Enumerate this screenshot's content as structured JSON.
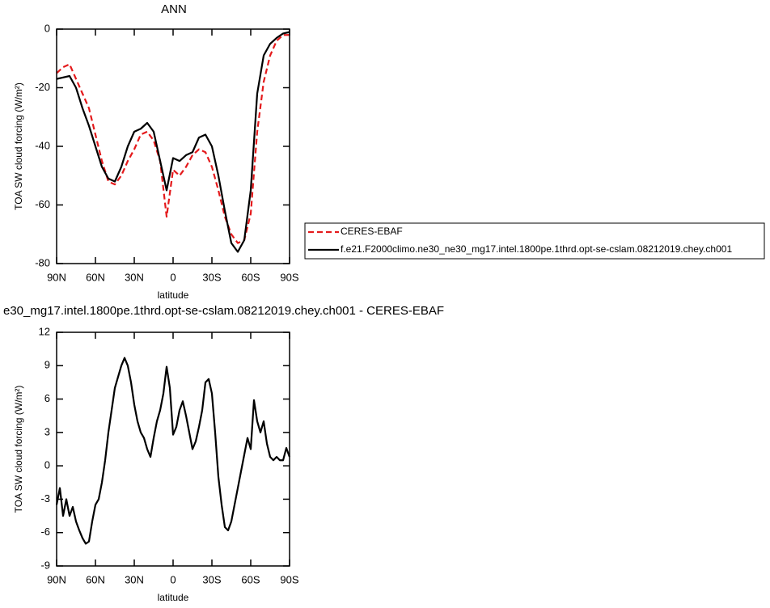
{
  "chart_data": [
    {
      "type": "line",
      "title": "ANN",
      "xlabel": "latitude",
      "ylabel": "TOA SW cloud forcing (W/m²)",
      "x": [
        90,
        85,
        80,
        75,
        70,
        65,
        60,
        55,
        50,
        45,
        40,
        35,
        30,
        25,
        20,
        15,
        10,
        5,
        0,
        -5,
        -10,
        -15,
        -20,
        -25,
        -30,
        -35,
        -40,
        -45,
        -50,
        -55,
        -60,
        -65,
        -70,
        -75,
        -80,
        -85,
        -90
      ],
      "series": [
        {
          "name": "CERES-EBAF",
          "color": "#e41a1c",
          "dash": true,
          "values": [
            -15,
            -13,
            -12,
            -17,
            -22,
            -27,
            -36,
            -45,
            -52,
            -53,
            -50,
            -45,
            -41,
            -36,
            -35,
            -38,
            -45,
            -64,
            -48,
            -50,
            -47,
            -43,
            -41,
            -42,
            -47,
            -55,
            -64,
            -70,
            -73,
            -72,
            -63,
            -35,
            -18,
            -9,
            -4,
            -2,
            -2
          ]
        },
        {
          "name": "f.e21.F2000climo.ne30_ne30_mg17.intel.1800pe.1thrd.opt-se-cslam.08212019.chey.ch001",
          "color": "#000000",
          "dash": false,
          "values": [
            -17,
            -16.5,
            -16,
            -20,
            -27,
            -33,
            -40,
            -47,
            -51,
            -52,
            -47,
            -40,
            -35,
            -34,
            -32,
            -35,
            -45,
            -55,
            -44,
            -45,
            -43,
            -42,
            -37,
            -36,
            -40,
            -50,
            -62,
            -73,
            -76,
            -72,
            -55,
            -22,
            -9,
            -5,
            -3,
            -1.5,
            -1
          ]
        }
      ],
      "legend": "right",
      "xlim": [
        90,
        -90
      ],
      "xticks": [
        {
          "value": 90,
          "label": "90N"
        },
        {
          "value": 60,
          "label": "60N"
        },
        {
          "value": 30,
          "label": "30N"
        },
        {
          "value": 0,
          "label": "0"
        },
        {
          "value": -30,
          "label": "30S"
        },
        {
          "value": -60,
          "label": "60S"
        },
        {
          "value": -90,
          "label": "90S"
        }
      ],
      "ylim": [
        -80,
        0
      ],
      "yticks": [
        0,
        -20,
        -40,
        -60,
        -80
      ]
    },
    {
      "type": "line",
      "title": "e30_mg17.intel.1800pe.1thrd.opt-se-cslam.08212019.chey.ch001 - CERES-EBAF",
      "xlabel": "latitude",
      "ylabel": "TOA SW cloud forcing (W/m²)",
      "x": [
        90,
        87.5,
        85,
        82.5,
        80,
        77.5,
        75,
        72.5,
        70,
        67.5,
        65,
        62.5,
        60,
        57.5,
        55,
        52.5,
        50,
        47.5,
        45,
        42.5,
        40,
        37.5,
        35,
        32.5,
        30,
        27.5,
        25,
        22.5,
        20,
        17.5,
        15,
        12.5,
        10,
        7.5,
        5,
        2.5,
        0,
        -2.5,
        -5,
        -7.5,
        -10,
        -12.5,
        -15,
        -17.5,
        -20,
        -22.5,
        -25,
        -27.5,
        -30,
        -32.5,
        -35,
        -37.5,
        -40,
        -42.5,
        -45,
        -47.5,
        -50,
        -52.5,
        -55,
        -57.5,
        -60,
        -62.5,
        -65,
        -67.5,
        -70,
        -72.5,
        -75,
        -77.5,
        -80,
        -82.5,
        -85,
        -87.5,
        -90
      ],
      "series": [
        {
          "color": "#000000",
          "dash": false,
          "values": [
            -3.5,
            -2,
            -4.5,
            -3,
            -4.5,
            -3.7,
            -5,
            -5.8,
            -6.5,
            -7,
            -6.8,
            -5,
            -3.5,
            -3,
            -1.5,
            0.5,
            3,
            5,
            7,
            8,
            9,
            9.7,
            9,
            7.5,
            5.5,
            4,
            3,
            2.5,
            1.5,
            0.8,
            2.5,
            4,
            5,
            6.5,
            8.9,
            7,
            2.8,
            3.5,
            5,
            5.8,
            4.5,
            3,
            1.5,
            2.2,
            3.5,
            5,
            7.5,
            7.8,
            6.5,
            3,
            -1,
            -3.5,
            -5.5,
            -5.8,
            -5,
            -3.5,
            -2,
            -0.5,
            1,
            2.5,
            1.5,
            5.9,
            4,
            3,
            4,
            2,
            0.8,
            0.5,
            0.8,
            0.5,
            0.5,
            1.6,
            0.8
          ]
        }
      ],
      "xlim": [
        90,
        -90
      ],
      "xticks": [
        {
          "value": 90,
          "label": "90N"
        },
        {
          "value": 60,
          "label": "60N"
        },
        {
          "value": 30,
          "label": "30N"
        },
        {
          "value": 0,
          "label": "0"
        },
        {
          "value": -30,
          "label": "30S"
        },
        {
          "value": -60,
          "label": "60S"
        },
        {
          "value": -90,
          "label": "90S"
        }
      ],
      "ylim": [
        -9,
        12
      ],
      "yticks": [
        12,
        9,
        6,
        3,
        0,
        -3,
        -6,
        -9
      ]
    }
  ]
}
